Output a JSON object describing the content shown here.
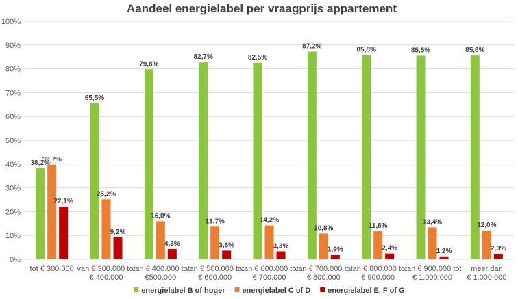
{
  "chart_data": {
    "type": "bar",
    "title": "Aandeel energielabel per vraagprijs appartement",
    "xlabel": "",
    "ylabel": "",
    "ylim": [
      0,
      100
    ],
    "yticks": [
      "0%",
      "10%",
      "20%",
      "30%",
      "40%",
      "50%",
      "60%",
      "70%",
      "80%",
      "90%",
      "100%"
    ],
    "grid": true,
    "legend_position": "bottom",
    "categories": [
      [
        "tot € 300.000"
      ],
      [
        "van € 300.000 tot",
        "€ 400.000"
      ],
      [
        "van € 400.000 tot",
        "€500.000"
      ],
      [
        "van € 500.000 tot",
        "€ 600.000"
      ],
      [
        "van € 600.000 tot",
        "€ 700.000"
      ],
      [
        "van € 700.000 tot",
        "€ 800.000"
      ],
      [
        "van € 800.000 tot",
        "€ 900.000"
      ],
      [
        "van € 900.000 tot",
        "€ 1.000.000"
      ],
      [
        "meer dan",
        "€ 1.000.000"
      ]
    ],
    "series": [
      {
        "name": "energielabel B of hoger",
        "color": "#8cc63f",
        "values": [
          38.2,
          65.5,
          79.8,
          82.7,
          82.5,
          87.2,
          85.8,
          85.5,
          85.6
        ],
        "labels": [
          "38,2%",
          "65,5%",
          "79,8%",
          "82,7%",
          "82,5%",
          "87,2%",
          "85,8%",
          "85,5%",
          "85,6%"
        ]
      },
      {
        "name": "energielabel C of D",
        "color": "#ed7d31",
        "values": [
          39.7,
          25.2,
          16.0,
          13.7,
          14.2,
          10.8,
          11.8,
          13.4,
          12.0
        ],
        "labels": [
          "39,7%",
          "25,2%",
          "16,0%",
          "13,7%",
          "14,2%",
          "10,8%",
          "11,8%",
          "13,4%",
          "12,0%"
        ]
      },
      {
        "name": "energielabel E, F of G",
        "color": "#c00000",
        "values": [
          22.1,
          9.2,
          4.3,
          3.6,
          3.3,
          1.9,
          2.4,
          1.2,
          2.3
        ],
        "labels": [
          "22,1%",
          "9,2%",
          "4,3%",
          "3,6%",
          "3,3%",
          "1,9%",
          "2,4%",
          "1,2%",
          "2,3%"
        ]
      }
    ]
  }
}
